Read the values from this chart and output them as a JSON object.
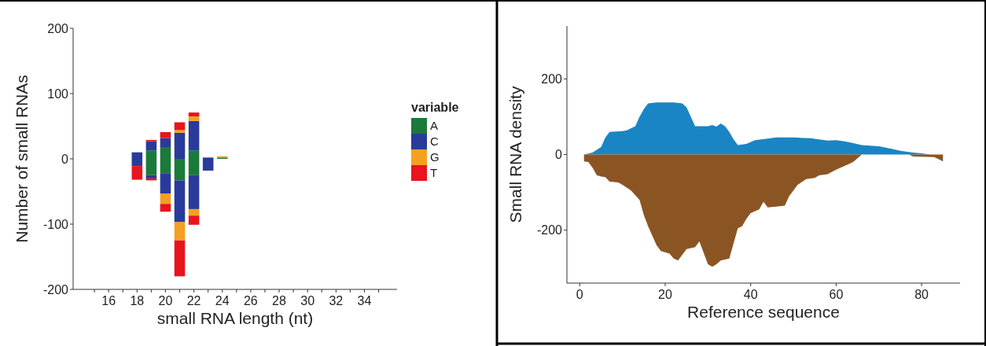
{
  "chart_data": [
    {
      "type": "bar",
      "stacked": true,
      "xlabel": "small RNA length (nt)",
      "ylabel": "Number of small RNAs",
      "legend_title": "variable",
      "legend": "right",
      "grid": false,
      "x": [
        18,
        19,
        20,
        21,
        22,
        23,
        24
      ],
      "xlim": [
        13.5,
        36.3
      ],
      "xticks": [
        {
          "value": 15,
          "label": null
        },
        16,
        {
          "value": 17,
          "label": null
        },
        18,
        {
          "value": 19,
          "label": null
        },
        20,
        {
          "value": 21,
          "label": null
        },
        22,
        {
          "value": 23,
          "label": null
        },
        24,
        {
          "value": 25,
          "label": null
        },
        26,
        {
          "value": 27,
          "label": null
        },
        28,
        {
          "value": 29,
          "label": null
        },
        30,
        {
          "value": 31,
          "label": null
        },
        32,
        {
          "value": 33,
          "label": null
        },
        34,
        {
          "value": 35,
          "label": null
        }
      ],
      "ylim": [
        -200,
        200
      ],
      "yticks": [
        -200,
        -100,
        0,
        100,
        200
      ],
      "series": [
        {
          "name": "A",
          "color": "#1a7a3a",
          "values": [
            0,
            13,
            17,
            0,
            13,
            0,
            2
          ]
        },
        {
          "name": "C",
          "color": "#2a3a9a",
          "values": [
            10,
            14,
            15,
            40,
            45,
            2,
            0
          ]
        },
        {
          "name": "G",
          "color": "#f5a020",
          "values": [
            0,
            0,
            0,
            4,
            7,
            0,
            2
          ]
        },
        {
          "name": "T",
          "color": "#e8141e",
          "values": [
            0,
            2,
            9,
            12,
            6,
            0,
            0
          ]
        },
        {
          "color": "#1a7a3a",
          "values": [
            0,
            -25,
            -22,
            -33,
            -25,
            0,
            0
          ]
        },
        {
          "color": "#2a3a9a",
          "values": [
            -11,
            -5,
            -31,
            -64,
            -52,
            -18,
            0
          ]
        },
        {
          "color": "#f5a020",
          "values": [
            0,
            0,
            -16,
            -28,
            -10,
            0,
            0
          ]
        },
        {
          "color": "#e8141e",
          "values": [
            -21,
            -3,
            -12,
            -55,
            -14,
            0,
            0
          ]
        }
      ]
    },
    {
      "type": "area",
      "xlabel": "Reference sequence",
      "ylabel": "Small RNA density",
      "legend": false,
      "grid": false,
      "xlim": [
        -3,
        89
      ],
      "xticks": [
        0,
        20,
        40,
        60,
        80
      ],
      "ylim": [
        -340,
        340
      ],
      "yticks": [
        -200,
        0,
        200
      ],
      "series": [
        {
          "color": "#1a85c4",
          "x": [
            1,
            3,
            5,
            6,
            7,
            10,
            11,
            13,
            14,
            15,
            16,
            18,
            22,
            24,
            25,
            26,
            27,
            30,
            31,
            32,
            33,
            34,
            35,
            36,
            37,
            39,
            41,
            44,
            46,
            50,
            54,
            58,
            60,
            62,
            64,
            66,
            70,
            73,
            75,
            78,
            80,
            82,
            85
          ],
          "values": [
            0,
            5,
            20,
            45,
            60,
            62,
            64,
            75,
            100,
            120,
            135,
            138,
            138,
            135,
            125,
            100,
            75,
            75,
            78,
            74,
            82,
            75,
            60,
            40,
            25,
            28,
            38,
            42,
            45,
            45,
            43,
            37,
            38,
            35,
            30,
            25,
            22,
            15,
            10,
            5,
            3,
            0,
            0
          ]
        },
        {
          "color": "#8b5523",
          "x": [
            1,
            2,
            3,
            4,
            5,
            6,
            7,
            9,
            10,
            12,
            14,
            15,
            16,
            17,
            18,
            19,
            21,
            22,
            23,
            24,
            25,
            27,
            28,
            29,
            30,
            31,
            32,
            33,
            35,
            36,
            37,
            38,
            39,
            40,
            42,
            43,
            44,
            46,
            48,
            49,
            51,
            53,
            55,
            56,
            58,
            60,
            62,
            64,
            66,
            77,
            78,
            83,
            85
          ],
          "values": [
            -18,
            -20,
            -35,
            -55,
            -58,
            -60,
            -72,
            -74,
            -80,
            -95,
            -120,
            -160,
            -190,
            -215,
            -240,
            -255,
            -262,
            -275,
            -280,
            -265,
            -250,
            -245,
            -230,
            -260,
            -290,
            -297,
            -290,
            -280,
            -275,
            -235,
            -195,
            -190,
            -170,
            -155,
            -145,
            -125,
            -140,
            -138,
            -135,
            -110,
            -80,
            -65,
            -62,
            -55,
            -52,
            -40,
            -30,
            -20,
            0,
            0,
            -5,
            -7,
            -18
          ]
        }
      ]
    }
  ]
}
